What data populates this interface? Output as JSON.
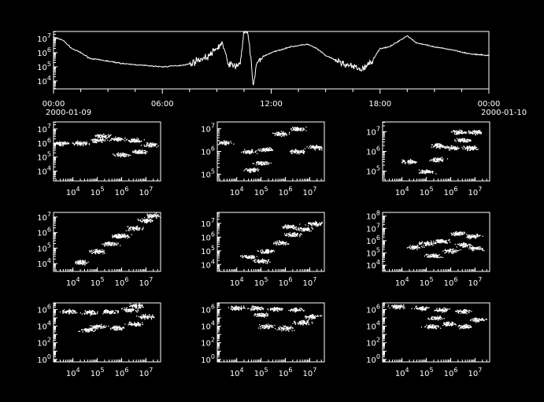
{
  "colors": {
    "background": "#000000",
    "foreground": "#ffffff"
  },
  "chart_data": [
    {
      "type": "line",
      "id": "timeseries",
      "yscale": "log",
      "ylim_log10": [
        3.44,
        7.5
      ],
      "y_tick_labels": [
        "10^4",
        "10^5",
        "10^6",
        "10^7"
      ],
      "x_tick_labels": [
        {
          "time": "00:00",
          "date": "2000-01-09"
        },
        {
          "time": "06:00",
          "date": ""
        },
        {
          "time": "12:00",
          "date": ""
        },
        {
          "time": "18:00",
          "date": ""
        },
        {
          "time": "00:00",
          "date": "2000-01-10"
        }
      ],
      "x_hours": [
        0,
        0.5,
        1,
        1.5,
        2,
        3,
        4,
        5,
        6,
        7,
        7.5,
        8,
        8.5,
        9,
        9.3,
        9.6,
        10,
        10.3,
        10.5,
        10.7,
        10.9,
        11,
        11.2,
        11.5,
        12,
        13,
        14,
        14.5,
        15,
        16,
        16.5,
        17,
        17.5,
        18,
        18.5,
        19,
        19.5,
        20,
        21,
        22,
        23,
        24
      ],
      "y_log10": [
        7.1,
        6.9,
        6.3,
        6.0,
        5.6,
        5.4,
        5.2,
        5.1,
        5.0,
        5.1,
        5.2,
        5.5,
        5.7,
        6.3,
        6.7,
        5.3,
        5.0,
        5.3,
        7.5,
        7.4,
        5.5,
        3.5,
        5.2,
        5.7,
        6.0,
        6.4,
        6.6,
        6.3,
        5.8,
        5.2,
        5.0,
        4.8,
        5.3,
        6.3,
        6.4,
        6.8,
        7.2,
        6.7,
        6.4,
        6.2,
        5.9,
        5.8
      ]
    },
    {
      "type": "scatter",
      "id": "r1c1",
      "xscale": "log",
      "yscale": "log",
      "xlim_log10": [
        3.2,
        7.6
      ],
      "ylim_log10": [
        3.3,
        7.5
      ],
      "x_tick_labels": [
        "10^4",
        "10^5",
        "10^6",
        "10^7"
      ],
      "y_tick_labels": [
        "10^4",
        "10^5",
        "10^6",
        "10^7"
      ],
      "clusters_log10": [
        [
          3.5,
          6.0
        ],
        [
          4.3,
          6.0
        ],
        [
          5.0,
          6.2
        ],
        [
          5.8,
          6.3
        ],
        [
          6.5,
          6.2
        ],
        [
          7.2,
          5.9
        ],
        [
          5.2,
          6.5
        ],
        [
          6.7,
          5.4
        ],
        [
          6.0,
          5.2
        ]
      ]
    },
    {
      "type": "scatter",
      "id": "r1c2",
      "xscale": "log",
      "yscale": "log",
      "xlim_log10": [
        3.2,
        7.6
      ],
      "ylim_log10": [
        4.7,
        7.3
      ],
      "x_tick_labels": [
        "10^4",
        "10^5",
        "10^6",
        "10^7"
      ],
      "y_tick_labels": [
        "10^5",
        "10^6",
        "10^7"
      ],
      "clusters_log10": [
        [
          3.5,
          6.4
        ],
        [
          4.5,
          6.0
        ],
        [
          5.0,
          5.5
        ],
        [
          5.2,
          6.1
        ],
        [
          5.8,
          6.8
        ],
        [
          6.5,
          7.0
        ],
        [
          6.5,
          6.0
        ],
        [
          7.2,
          6.2
        ],
        [
          4.6,
          5.2
        ]
      ]
    },
    {
      "type": "scatter",
      "id": "r1c3",
      "xscale": "log",
      "yscale": "log",
      "xlim_log10": [
        3.2,
        7.6
      ],
      "ylim_log10": [
        4.5,
        7.5
      ],
      "x_tick_labels": [
        "10^4",
        "10^5",
        "10^6",
        "10^7"
      ],
      "y_tick_labels": [
        "10^5",
        "10^6",
        "10^7"
      ],
      "clusters_log10": [
        [
          4.3,
          5.5
        ],
        [
          5.0,
          5.0
        ],
        [
          5.5,
          5.6
        ],
        [
          6.0,
          6.2
        ],
        [
          6.5,
          6.6
        ],
        [
          7.0,
          7.0
        ],
        [
          5.5,
          6.3
        ],
        [
          6.3,
          7.0
        ],
        [
          6.8,
          6.2
        ]
      ]
    },
    {
      "type": "scatter",
      "id": "r2c1",
      "xscale": "log",
      "yscale": "log",
      "xlim_log10": [
        3.2,
        7.6
      ],
      "ylim_log10": [
        3.5,
        7.3
      ],
      "x_tick_labels": [
        "10^4",
        "10^5",
        "10^6",
        "10^7"
      ],
      "y_tick_labels": [
        "10^4",
        "10^5",
        "10^6",
        "10^7"
      ],
      "clusters_log10": [
        [
          4.3,
          4.1
        ],
        [
          5.0,
          4.8
        ],
        [
          5.5,
          5.3
        ],
        [
          6.0,
          5.8
        ],
        [
          6.5,
          6.3
        ],
        [
          7.0,
          6.8
        ],
        [
          7.3,
          7.1
        ],
        [
          5.8,
          5.8
        ]
      ]
    },
    {
      "type": "scatter",
      "id": "r2c2",
      "xscale": "log",
      "yscale": "log",
      "xlim_log10": [
        3.2,
        7.6
      ],
      "ylim_log10": [
        3.5,
        7.8
      ],
      "x_tick_labels": [
        "10^4",
        "10^5",
        "10^6",
        "10^7"
      ],
      "y_tick_labels": [
        "10^4",
        "10^5",
        "10^6",
        "10^7"
      ],
      "clusters_log10": [
        [
          4.5,
          4.6
        ],
        [
          5.2,
          5.0
        ],
        [
          5.8,
          5.6
        ],
        [
          6.3,
          6.2
        ],
        [
          6.8,
          6.6
        ],
        [
          7.2,
          7.0
        ],
        [
          6.2,
          6.8
        ],
        [
          5.0,
          4.3
        ]
      ]
    },
    {
      "type": "scatter",
      "id": "r2c3",
      "xscale": "log",
      "yscale": "log",
      "xlim_log10": [
        3.2,
        7.6
      ],
      "ylim_log10": [
        3.5,
        8.3
      ],
      "x_tick_labels": [
        "10^4",
        "10^5",
        "10^6",
        "10^7"
      ],
      "y_tick_labels": [
        "10^4",
        "10^5",
        "10^6",
        "10^7",
        "10^8"
      ],
      "clusters_log10": [
        [
          4.5,
          5.5
        ],
        [
          5.0,
          5.8
        ],
        [
          5.3,
          4.8
        ],
        [
          6.0,
          5.2
        ],
        [
          6.5,
          5.7
        ],
        [
          7.0,
          5.4
        ],
        [
          6.3,
          6.6
        ],
        [
          6.9,
          6.4
        ],
        [
          5.6,
          6.0
        ]
      ]
    },
    {
      "type": "scatter",
      "id": "r3c1",
      "xscale": "log",
      "yscale": "log",
      "xlim_log10": [
        3.2,
        7.6
      ],
      "ylim_log10": [
        -0.3,
        6.8
      ],
      "x_tick_labels": [
        "10^4",
        "10^5",
        "10^6",
        "10^7"
      ],
      "y_tick_labels": [
        "10^0",
        "10^2",
        "10^4",
        "10^6"
      ],
      "clusters_log10": [
        [
          3.8,
          5.8
        ],
        [
          4.7,
          5.7
        ],
        [
          5.5,
          5.8
        ],
        [
          6.3,
          6.0
        ],
        [
          6.6,
          6.5
        ],
        [
          5.0,
          4.0
        ],
        [
          5.8,
          3.8
        ],
        [
          6.5,
          4.3
        ],
        [
          7.0,
          5.2
        ],
        [
          4.6,
          3.6
        ]
      ]
    },
    {
      "type": "scatter",
      "id": "r3c2",
      "xscale": "log",
      "yscale": "log",
      "xlim_log10": [
        3.2,
        7.6
      ],
      "ylim_log10": [
        -0.3,
        6.8
      ],
      "x_tick_labels": [
        "10^4",
        "10^5",
        "10^6",
        "10^7"
      ],
      "y_tick_labels": [
        "10^0",
        "10^2",
        "10^4",
        "10^6"
      ],
      "clusters_log10": [
        [
          4.0,
          6.2
        ],
        [
          4.8,
          6.2
        ],
        [
          5.6,
          6.1
        ],
        [
          6.4,
          6.0
        ],
        [
          5.2,
          4.0
        ],
        [
          6.0,
          3.8
        ],
        [
          6.7,
          4.5
        ],
        [
          7.1,
          5.2
        ],
        [
          5.0,
          5.4
        ]
      ]
    },
    {
      "type": "scatter",
      "id": "r3c3",
      "xscale": "log",
      "yscale": "log",
      "xlim_log10": [
        3.2,
        7.6
      ],
      "ylim_log10": [
        -0.3,
        6.8
      ],
      "x_tick_labels": [
        "10^4",
        "10^5",
        "10^6",
        "10^7"
      ],
      "y_tick_labels": [
        "10^0",
        "10^2",
        "10^4",
        "10^6"
      ],
      "clusters_log10": [
        [
          3.8,
          6.4
        ],
        [
          4.8,
          6.2
        ],
        [
          5.6,
          6.0
        ],
        [
          6.5,
          5.8
        ],
        [
          5.2,
          4.0
        ],
        [
          5.9,
          4.3
        ],
        [
          6.6,
          4.0
        ],
        [
          7.1,
          4.8
        ],
        [
          5.4,
          5.0
        ]
      ]
    }
  ]
}
